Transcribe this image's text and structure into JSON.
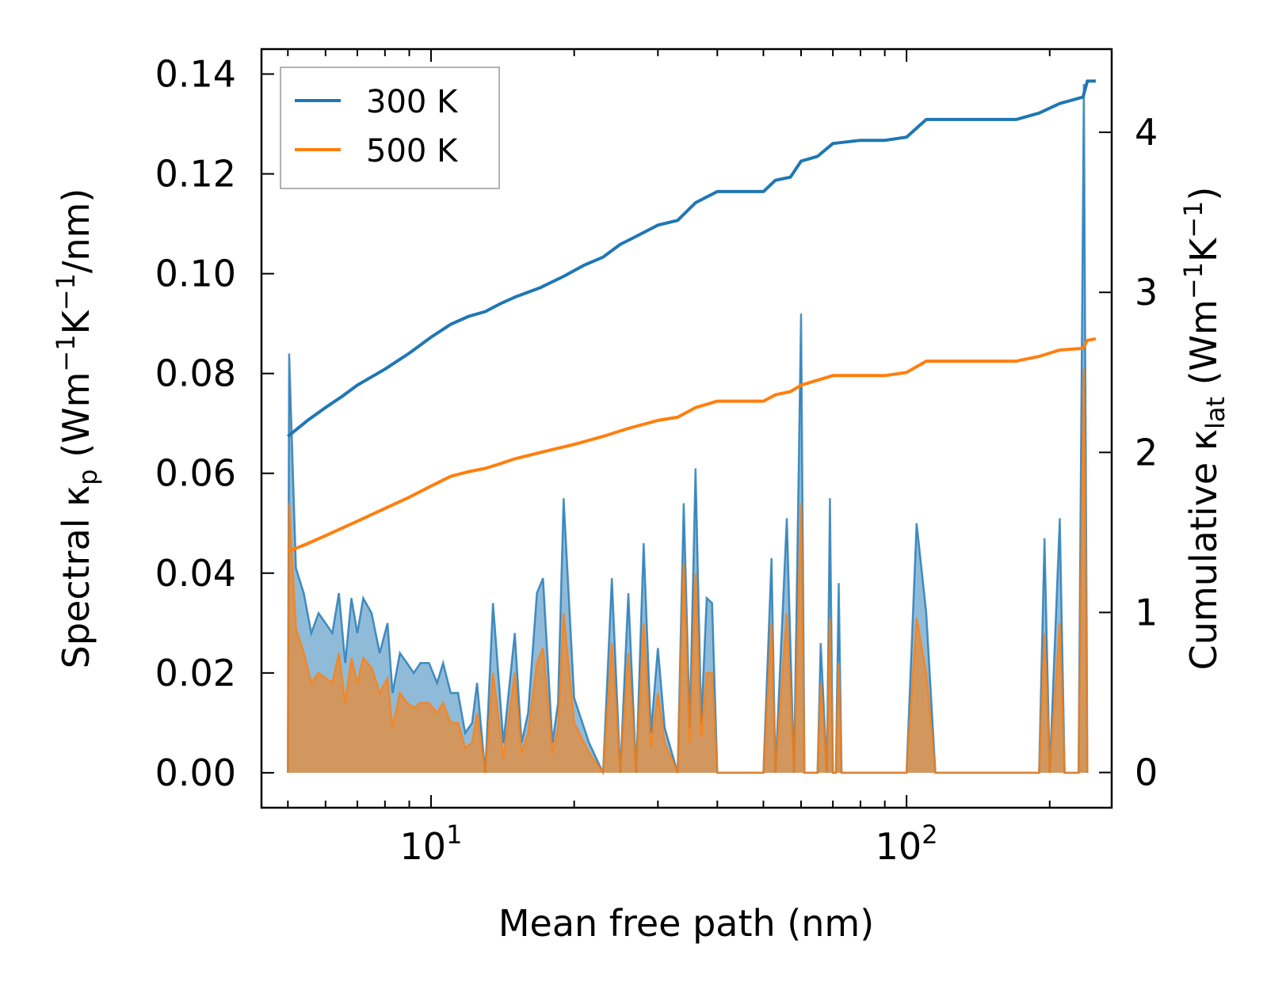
{
  "chart_data": {
    "type": "line",
    "xlabel": "Mean free path (nm)",
    "ylabel_left": "Spectral κp (Wm⁻¹K⁻¹/nm)",
    "ylabel_right": "Cumulative κlat (Wm⁻¹K⁻¹)",
    "x_scale": "log",
    "xlim": [
      4.4,
      270
    ],
    "ylim_left": [
      -0.007,
      0.145
    ],
    "ylim_right": [
      -0.22,
      4.52
    ],
    "x_ticks": [
      {
        "value": 10,
        "label": "10",
        "exp": "1"
      },
      {
        "value": 100,
        "label": "10",
        "exp": "2"
      }
    ],
    "y_ticks_left": [
      {
        "value": 0.0,
        "label": "0.00"
      },
      {
        "value": 0.02,
        "label": "0.02"
      },
      {
        "value": 0.04,
        "label": "0.04"
      },
      {
        "value": 0.06,
        "label": "0.06"
      },
      {
        "value": 0.08,
        "label": "0.08"
      },
      {
        "value": 0.1,
        "label": "0.10"
      },
      {
        "value": 0.12,
        "label": "0.12"
      },
      {
        "value": 0.14,
        "label": "0.14"
      }
    ],
    "y_ticks_right": [
      {
        "value": 0,
        "label": "0"
      },
      {
        "value": 1,
        "label": "1"
      },
      {
        "value": 2,
        "label": "2"
      },
      {
        "value": 3,
        "label": "3"
      },
      {
        "value": 4,
        "label": "4"
      }
    ],
    "legend": {
      "position": "top-left",
      "entries": [
        "300 K",
        "500 K"
      ]
    },
    "series": [
      {
        "name": "300 K",
        "color": "#1f77b4",
        "cumulative": [
          [
            5.0,
            2.1
          ],
          [
            5.5,
            2.2
          ],
          [
            6.0,
            2.28
          ],
          [
            6.5,
            2.35
          ],
          [
            7.0,
            2.42
          ],
          [
            8.0,
            2.52
          ],
          [
            9.0,
            2.62
          ],
          [
            10.0,
            2.72
          ],
          [
            11.0,
            2.8
          ],
          [
            12.0,
            2.85
          ],
          [
            13.0,
            2.88
          ],
          [
            14.0,
            2.93
          ],
          [
            15.0,
            2.97
          ],
          [
            17.0,
            3.03
          ],
          [
            19.0,
            3.1
          ],
          [
            21.0,
            3.17
          ],
          [
            23.0,
            3.22
          ],
          [
            25.0,
            3.3
          ],
          [
            27.0,
            3.35
          ],
          [
            30.0,
            3.42
          ],
          [
            33.0,
            3.45
          ],
          [
            36.0,
            3.56
          ],
          [
            40.0,
            3.63
          ],
          [
            45.0,
            3.63
          ],
          [
            50.0,
            3.63
          ],
          [
            53.0,
            3.7
          ],
          [
            57.0,
            3.72
          ],
          [
            60.0,
            3.82
          ],
          [
            65.0,
            3.85
          ],
          [
            70.0,
            3.93
          ],
          [
            80.0,
            3.95
          ],
          [
            90.0,
            3.95
          ],
          [
            100.0,
            3.97
          ],
          [
            110.0,
            4.08
          ],
          [
            130.0,
            4.08
          ],
          [
            170.0,
            4.08
          ],
          [
            190.0,
            4.12
          ],
          [
            210.0,
            4.18
          ],
          [
            235.0,
            4.22
          ],
          [
            240.0,
            4.32
          ],
          [
            250.0,
            4.32
          ]
        ],
        "spectral": [
          [
            5.0,
            0.0
          ],
          [
            5.03,
            0.084
          ],
          [
            5.2,
            0.041
          ],
          [
            5.4,
            0.036
          ],
          [
            5.6,
            0.028
          ],
          [
            5.8,
            0.032
          ],
          [
            6.0,
            0.03
          ],
          [
            6.2,
            0.028
          ],
          [
            6.4,
            0.036
          ],
          [
            6.6,
            0.022
          ],
          [
            6.8,
            0.035
          ],
          [
            7.0,
            0.028
          ],
          [
            7.2,
            0.035
          ],
          [
            7.5,
            0.032
          ],
          [
            7.8,
            0.024
          ],
          [
            8.1,
            0.03
          ],
          [
            8.3,
            0.016
          ],
          [
            8.6,
            0.024
          ],
          [
            8.9,
            0.022
          ],
          [
            9.2,
            0.02
          ],
          [
            9.5,
            0.022
          ],
          [
            9.9,
            0.022
          ],
          [
            10.3,
            0.018
          ],
          [
            10.6,
            0.022
          ],
          [
            11.0,
            0.016
          ],
          [
            11.4,
            0.016
          ],
          [
            11.8,
            0.008
          ],
          [
            12.2,
            0.01
          ],
          [
            12.5,
            0.018
          ],
          [
            13.0,
            0.0
          ],
          [
            13.5,
            0.034
          ],
          [
            14.2,
            0.006
          ],
          [
            15.0,
            0.028
          ],
          [
            15.5,
            0.006
          ],
          [
            16.0,
            0.012
          ],
          [
            16.7,
            0.036
          ],
          [
            17.2,
            0.039
          ],
          [
            18.0,
            0.006
          ],
          [
            18.5,
            0.014
          ],
          [
            19.0,
            0.055
          ],
          [
            20.0,
            0.015
          ],
          [
            21.5,
            0.006
          ],
          [
            23.0,
            0.0
          ],
          [
            24.0,
            0.039
          ],
          [
            25.0,
            0.0
          ],
          [
            26.0,
            0.036
          ],
          [
            27.0,
            0.0
          ],
          [
            28.0,
            0.046
          ],
          [
            29.0,
            0.008
          ],
          [
            30.0,
            0.025
          ],
          [
            31.0,
            0.009
          ],
          [
            33.0,
            0.0
          ],
          [
            34.0,
            0.054
          ],
          [
            35.0,
            0.009
          ],
          [
            36.0,
            0.061
          ],
          [
            37.0,
            0.01
          ],
          [
            38.0,
            0.035
          ],
          [
            39.0,
            0.034
          ],
          [
            40.0,
            0.0
          ],
          [
            50.0,
            0.0
          ],
          [
            52.0,
            0.043
          ],
          [
            53.0,
            0.0
          ],
          [
            56.0,
            0.051
          ],
          [
            58.0,
            0.0
          ],
          [
            60.0,
            0.092
          ],
          [
            61.0,
            0.0
          ],
          [
            65.0,
            0.0
          ],
          [
            66.0,
            0.026
          ],
          [
            68.0,
            0.0
          ],
          [
            69.0,
            0.055
          ],
          [
            70.0,
            0.0
          ],
          [
            71.0,
            0.0
          ],
          [
            72.0,
            0.038
          ],
          [
            73.0,
            0.0
          ],
          [
            100.0,
            0.0
          ],
          [
            105.0,
            0.05
          ],
          [
            110.0,
            0.032
          ],
          [
            115.0,
            0.0
          ],
          [
            190.0,
            0.0
          ],
          [
            195.0,
            0.047
          ],
          [
            200.0,
            0.0
          ],
          [
            210.0,
            0.051
          ],
          [
            215.0,
            0.0
          ],
          [
            230.0,
            0.0
          ],
          [
            236.0,
            0.138
          ],
          [
            240.0,
            0.0
          ]
        ]
      },
      {
        "name": "500 K",
        "color": "#ff7f0e",
        "cumulative": [
          [
            5.0,
            1.38
          ],
          [
            5.5,
            1.43
          ],
          [
            6.0,
            1.48
          ],
          [
            7.0,
            1.57
          ],
          [
            8.0,
            1.65
          ],
          [
            9.0,
            1.72
          ],
          [
            10.0,
            1.79
          ],
          [
            11.0,
            1.85
          ],
          [
            12.0,
            1.88
          ],
          [
            13.0,
            1.9
          ],
          [
            14.0,
            1.93
          ],
          [
            15.0,
            1.96
          ],
          [
            17.0,
            2.0
          ],
          [
            20.0,
            2.05
          ],
          [
            23.0,
            2.1
          ],
          [
            26.0,
            2.15
          ],
          [
            30.0,
            2.2
          ],
          [
            33.0,
            2.22
          ],
          [
            36.0,
            2.28
          ],
          [
            40.0,
            2.32
          ],
          [
            50.0,
            2.32
          ],
          [
            53.0,
            2.36
          ],
          [
            57.0,
            2.38
          ],
          [
            60.0,
            2.42
          ],
          [
            70.0,
            2.48
          ],
          [
            90.0,
            2.48
          ],
          [
            100.0,
            2.5
          ],
          [
            110.0,
            2.57
          ],
          [
            130.0,
            2.57
          ],
          [
            170.0,
            2.57
          ],
          [
            190.0,
            2.6
          ],
          [
            210.0,
            2.64
          ],
          [
            235.0,
            2.65
          ],
          [
            240.0,
            2.7
          ],
          [
            250.0,
            2.71
          ]
        ],
        "spectral": [
          [
            5.0,
            0.0
          ],
          [
            5.03,
            0.054
          ],
          [
            5.2,
            0.029
          ],
          [
            5.4,
            0.024
          ],
          [
            5.6,
            0.018
          ],
          [
            5.8,
            0.02
          ],
          [
            6.0,
            0.019
          ],
          [
            6.2,
            0.018
          ],
          [
            6.4,
            0.024
          ],
          [
            6.6,
            0.014
          ],
          [
            6.8,
            0.023
          ],
          [
            7.0,
            0.018
          ],
          [
            7.2,
            0.023
          ],
          [
            7.5,
            0.021
          ],
          [
            7.8,
            0.016
          ],
          [
            8.1,
            0.019
          ],
          [
            8.3,
            0.009
          ],
          [
            8.6,
            0.016
          ],
          [
            8.9,
            0.014
          ],
          [
            9.2,
            0.013
          ],
          [
            9.5,
            0.014
          ],
          [
            9.9,
            0.014
          ],
          [
            10.3,
            0.012
          ],
          [
            10.6,
            0.014
          ],
          [
            11.0,
            0.01
          ],
          [
            11.4,
            0.01
          ],
          [
            11.8,
            0.005
          ],
          [
            12.2,
            0.006
          ],
          [
            12.5,
            0.012
          ],
          [
            13.0,
            0.0
          ],
          [
            13.5,
            0.02
          ],
          [
            14.2,
            0.003
          ],
          [
            15.0,
            0.02
          ],
          [
            15.5,
            0.004
          ],
          [
            16.0,
            0.008
          ],
          [
            16.7,
            0.022
          ],
          [
            17.2,
            0.025
          ],
          [
            18.0,
            0.004
          ],
          [
            18.5,
            0.009
          ],
          [
            19.0,
            0.032
          ],
          [
            20.0,
            0.01
          ],
          [
            21.5,
            0.004
          ],
          [
            23.0,
            0.0
          ],
          [
            24.0,
            0.026
          ],
          [
            25.0,
            0.0
          ],
          [
            26.0,
            0.024
          ],
          [
            27.0,
            0.0
          ],
          [
            28.0,
            0.03
          ],
          [
            29.0,
            0.005
          ],
          [
            30.0,
            0.016
          ],
          [
            31.0,
            0.006
          ],
          [
            33.0,
            0.0
          ],
          [
            34.0,
            0.042
          ],
          [
            35.0,
            0.006
          ],
          [
            36.0,
            0.04
          ],
          [
            37.0,
            0.007
          ],
          [
            38.0,
            0.02
          ],
          [
            39.0,
            0.02
          ],
          [
            40.0,
            0.0
          ],
          [
            50.0,
            0.0
          ],
          [
            52.0,
            0.03
          ],
          [
            53.0,
            0.0
          ],
          [
            56.0,
            0.032
          ],
          [
            58.0,
            0.0
          ],
          [
            60.0,
            0.054
          ],
          [
            61.0,
            0.0
          ],
          [
            65.0,
            0.0
          ],
          [
            66.0,
            0.018
          ],
          [
            68.0,
            0.0
          ],
          [
            69.0,
            0.031
          ],
          [
            70.0,
            0.0
          ],
          [
            71.0,
            0.0
          ],
          [
            72.0,
            0.022
          ],
          [
            73.0,
            0.0
          ],
          [
            100.0,
            0.0
          ],
          [
            105.0,
            0.031
          ],
          [
            110.0,
            0.02
          ],
          [
            115.0,
            0.0
          ],
          [
            190.0,
            0.0
          ],
          [
            195.0,
            0.028
          ],
          [
            200.0,
            0.0
          ],
          [
            210.0,
            0.03
          ],
          [
            215.0,
            0.0
          ],
          [
            230.0,
            0.0
          ],
          [
            236.0,
            0.081
          ],
          [
            240.0,
            0.0
          ]
        ]
      }
    ]
  }
}
